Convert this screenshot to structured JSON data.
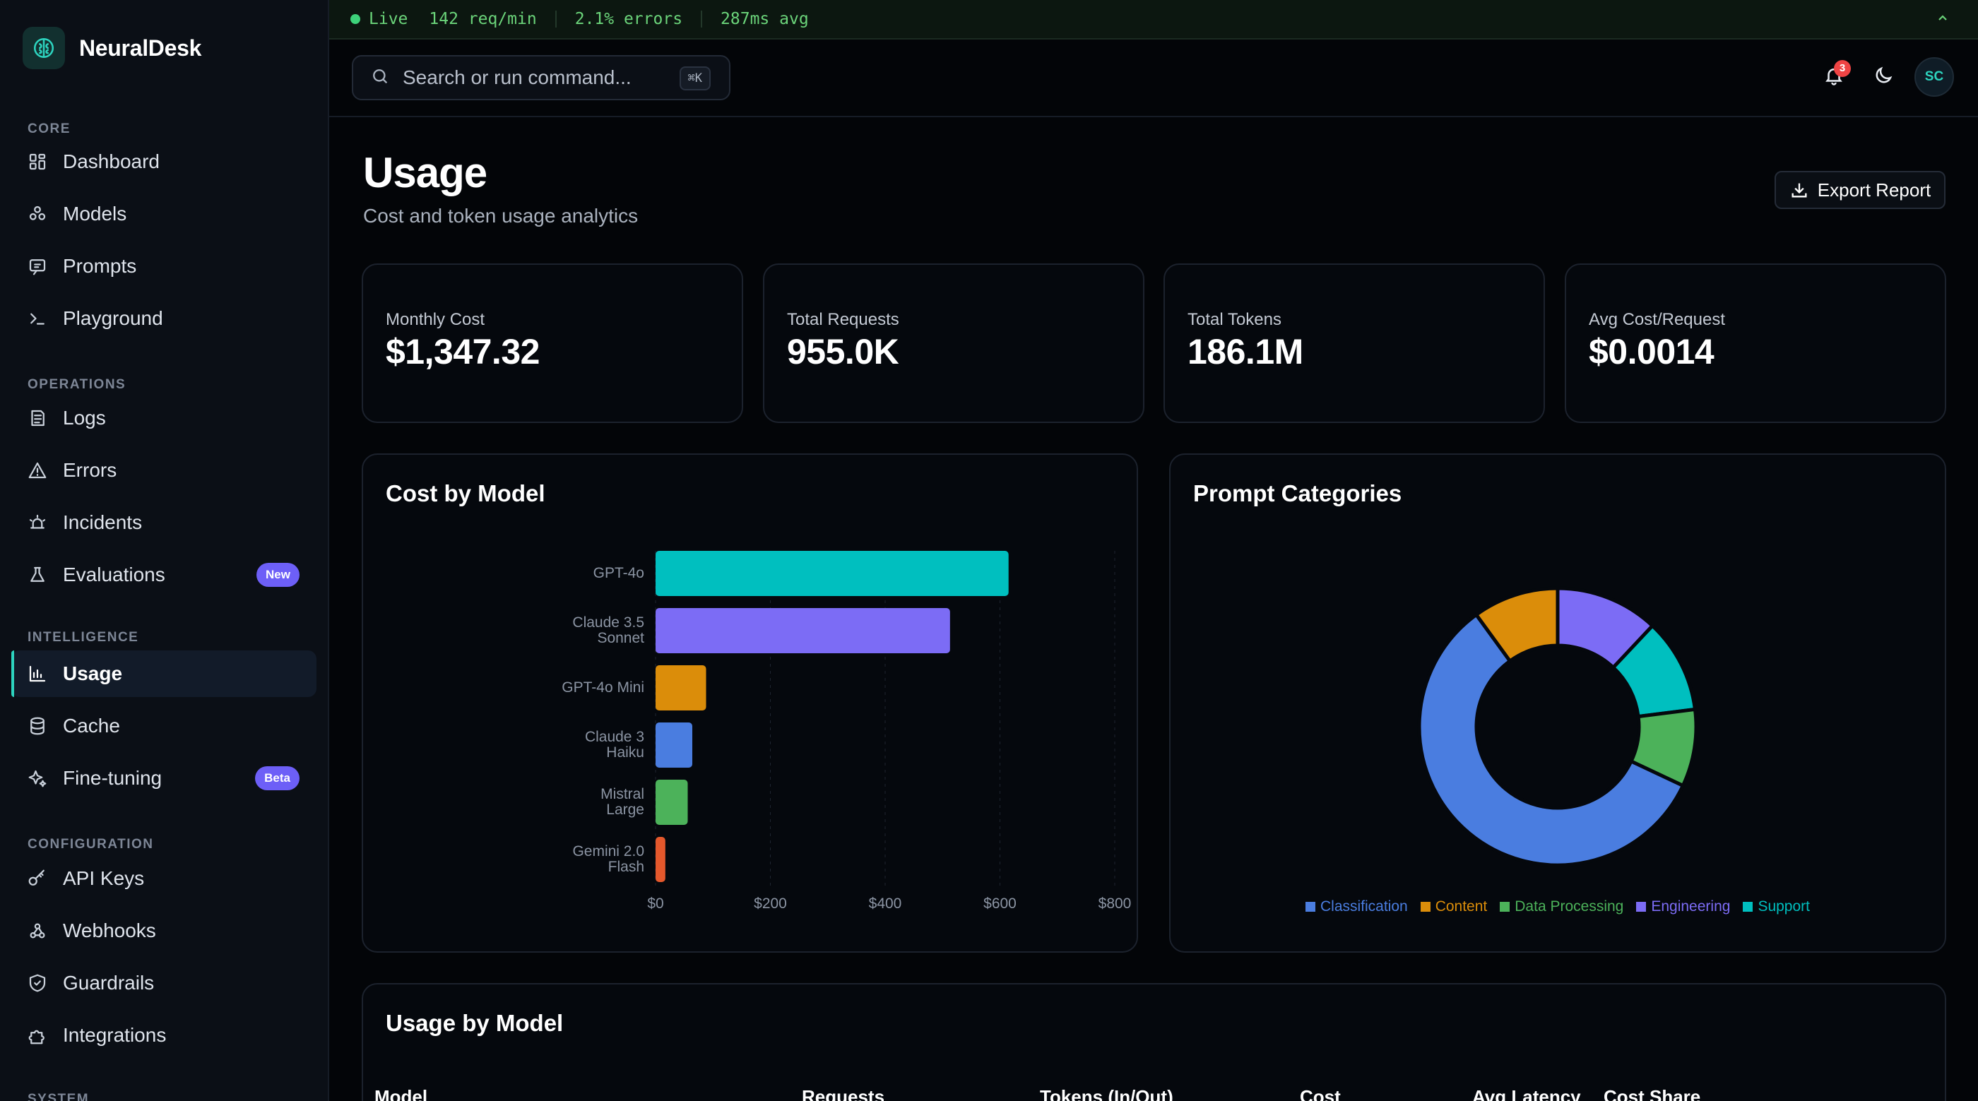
{
  "app": {
    "name": "NeuralDesk"
  },
  "sidebar": {
    "sections": [
      {
        "title": "CORE",
        "items": [
          {
            "label": "Dashboard",
            "icon": "dashboard-icon"
          },
          {
            "label": "Models",
            "icon": "models-icon"
          },
          {
            "label": "Prompts",
            "icon": "prompts-icon"
          },
          {
            "label": "Playground",
            "icon": "terminal-icon"
          }
        ]
      },
      {
        "title": "OPERATIONS",
        "items": [
          {
            "label": "Logs",
            "icon": "logs-icon"
          },
          {
            "label": "Errors",
            "icon": "warning-icon"
          },
          {
            "label": "Incidents",
            "icon": "siren-icon"
          },
          {
            "label": "Evaluations",
            "icon": "flask-icon",
            "badge": "New"
          }
        ]
      },
      {
        "title": "INTELLIGENCE",
        "items": [
          {
            "label": "Usage",
            "icon": "bar-chart-icon",
            "active": true
          },
          {
            "label": "Cache",
            "icon": "database-icon"
          },
          {
            "label": "Fine-tuning",
            "icon": "sparkles-icon",
            "badge": "Beta"
          }
        ]
      },
      {
        "title": "CONFIGURATION",
        "items": [
          {
            "label": "API Keys",
            "icon": "key-icon"
          },
          {
            "label": "Webhooks",
            "icon": "webhook-icon"
          },
          {
            "label": "Guardrails",
            "icon": "shield-icon"
          },
          {
            "label": "Integrations",
            "icon": "puzzle-icon"
          }
        ]
      },
      {
        "title": "SYSTEM",
        "items": []
      }
    ]
  },
  "statusbar": {
    "live": "Live",
    "rpm": "142 req/min",
    "errors": "2.1% errors",
    "latency": "287ms avg"
  },
  "search": {
    "placeholder": "Search or run command...",
    "shortcut": "⌘K"
  },
  "topbar": {
    "notification_count": "3",
    "avatar_initials": "SC"
  },
  "page": {
    "title": "Usage",
    "subtitle": "Cost and token usage analytics",
    "export_label": "Export Report"
  },
  "kpis": [
    {
      "label": "Monthly Cost",
      "value": "$1,347.32"
    },
    {
      "label": "Total Requests",
      "value": "955.0K"
    },
    {
      "label": "Total Tokens",
      "value": "186.1M"
    },
    {
      "label": "Avg Cost/Request",
      "value": "$0.0014"
    }
  ],
  "cost_chart_title": "Cost by Model",
  "categories_title": "Prompt Categories",
  "usage_table": {
    "title": "Usage by Model",
    "columns": [
      "Model",
      "Requests",
      "Tokens (In/Out)",
      "Cost",
      "Avg Latency",
      "Cost Share"
    ]
  },
  "chart_data": [
    {
      "type": "bar",
      "orientation": "horizontal",
      "title": "Cost by Model",
      "categories": [
        "GPT-4o",
        "Claude 3.5 Sonnet",
        "GPT-4o Mini",
        "Claude 3 Haiku",
        "Mistral Large",
        "Gemini 2.0 Flash"
      ],
      "category_lines": [
        [
          "GPT-4o"
        ],
        [
          "Claude 3.5",
          "Sonnet"
        ],
        [
          "GPT-4o Mini"
        ],
        [
          "Claude 3",
          "Haiku"
        ],
        [
          "Mistral",
          "Large"
        ],
        [
          "Gemini 2.0",
          "Flash"
        ]
      ],
      "values": [
        615,
        513,
        88,
        64,
        56,
        17
      ],
      "colors": [
        "#00bfbf",
        "#7c6cf5",
        "#db8d0a",
        "#4a7de0",
        "#4cb25a",
        "#e4582c"
      ],
      "xticks": [
        "$0",
        "$200",
        "$400",
        "$600",
        "$800"
      ],
      "xlim": [
        0,
        800
      ]
    },
    {
      "type": "pie",
      "donut": true,
      "title": "Prompt Categories",
      "labels": [
        "Classification",
        "Content",
        "Data Processing",
        "Engineering",
        "Support"
      ],
      "values": [
        58,
        10,
        9,
        12,
        11
      ],
      "colors": [
        "#4a7de0",
        "#db8d0a",
        "#4cb25a",
        "#7c6cf5",
        "#00bfbf"
      ],
      "order": [
        "Engineering",
        "Support",
        "Data Processing",
        "Classification",
        "Content"
      ],
      "legend_position": "bottom"
    }
  ]
}
